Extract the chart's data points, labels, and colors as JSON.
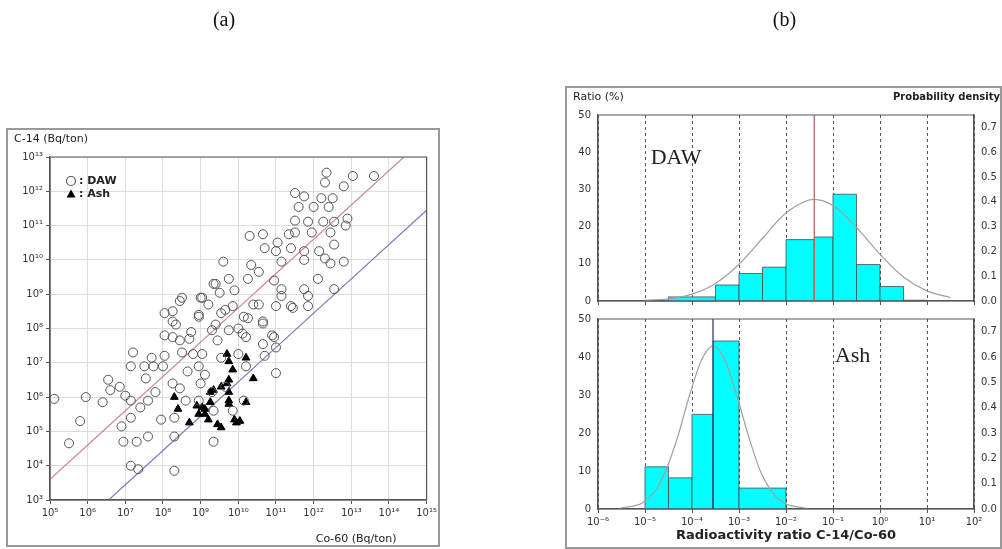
{
  "chart_data": [
    {
      "type": "scatter",
      "title": "(a)",
      "xlabel": "Co-60 (Bq/ton)",
      "ylabel": "C-14 (Bq/ton)",
      "log": "xy",
      "grid": true,
      "legend": "top left",
      "xlim": [
        100000.0,
        1000000000000000.0
      ],
      "ylim": [
        1000.0,
        10000000000000.0
      ],
      "xticks": [
        {
          "value": 100000.0,
          "label": "10⁵"
        },
        {
          "value": 1000000.0,
          "label": "10⁶"
        },
        {
          "value": 10000000.0,
          "label": "10⁷"
        },
        {
          "value": 100000000.0,
          "label": "10⁸"
        },
        {
          "value": 1000000000.0,
          "label": "10⁹"
        },
        {
          "value": 10000000000.0,
          "label": "10¹⁰"
        },
        {
          "value": 100000000000.0,
          "label": "10¹¹"
        },
        {
          "value": 1000000000000.0,
          "label": "10¹²"
        },
        {
          "value": 10000000000000.0,
          "label": "10¹³"
        },
        {
          "value": 100000000000000.0,
          "label": "10¹⁴"
        },
        {
          "value": 1000000000000000.0,
          "label": "10¹⁵"
        }
      ],
      "yticks": [
        {
          "value": 1000.0,
          "label": "10³"
        },
        {
          "value": 10000.0,
          "label": "10⁴"
        },
        {
          "value": 100000.0,
          "label": "10⁵"
        },
        {
          "value": 1000000.0,
          "label": "10⁶"
        },
        {
          "value": 10000000.0,
          "label": "10⁷"
        },
        {
          "value": 100000000.0,
          "label": "10⁸"
        },
        {
          "value": 1000000000.0,
          "label": "10⁹"
        },
        {
          "value": 10000000000.0,
          "label": "10¹⁰"
        },
        {
          "value": 100000000000.0,
          "label": "10¹¹"
        },
        {
          "value": 1000000000000.0,
          "label": "10¹²"
        },
        {
          "value": 10000000000000.0,
          "label": "10¹³"
        }
      ],
      "series": [
        {
          "name": ": DAW",
          "type": "scatter",
          "marker": "circle",
          "color": "#555555",
          "x": [
            130000.0,
            890000.0,
            630000.0,
            320000.0,
            2500000.0,
            3500000.0,
            4000000.0,
            7100000.0,
            7900000.0,
            8900000.0,
            14000000.0,
            14000000.0,
            20000000.0,
            22000000.0,
            40000000.0,
            200000000.0,
            200000000.0,
            89000000.0,
            200000000.0,
            16000000.0,
            14000000.0,
            32000000.0,
            50000000.0,
            56000000.0,
            35000000.0,
            10000000.0,
            14000000.0,
            25000000.0,
            40000000.0,
            63000000.0,
            100000000.0,
            110000000.0,
            110000000.0,
            180000000.0,
            110000000.0,
            180000000.0,
            220000000.0,
            280000000.0,
            320000000.0,
            560000000.0,
            890000000.0,
            1100000000.0,
            1600000000.0,
            2000000000.0,
            2800000000.0,
            3500000000.0,
            5600000000.0,
            7100000000.0,
            10000000000.0,
            16000000000.0,
            14000000000.0,
            25000000000.0,
            45000000000.0,
            45000000000.0,
            50000000000.0,
            89000000000.0,
            100000000000.0,
            100000000000.0,
            100000000000.0,
            280000000000.0,
            710000000000.0,
            1300000000.0,
            450000000.0,
            280000000.0,
            180000000.0,
            400000000.0,
            1000000000.0,
            890000000.0,
            2200000000.0,
            2000000000.0,
            4500000000.0,
            7100000000.0,
            14000000000.0,
            16000000000.0,
            10000000000.0,
            2200000000.0,
            630000000.0,
            3500000000.0,
            890000000.0,
            2200000000000.0,
            2000000000000.0,
            6300000000000.0,
            11000000000000.0,
            40000000000000.0,
            320000000000.0,
            560000000000.0,
            1600000000000.0,
            3200000000000.0,
            400000000000.0,
            1000000000000.0,
            2500000000000.0,
            7900000000000.0,
            7100000000000.0,
            320000000000.0,
            710000000000.0,
            1800000000000.0,
            3500000000000.0,
            320000000000.0,
            890000000000.0,
            2800000000000.0,
            3500000000000.0,
            220000000000.0,
            20000000000.0,
            45000000000.0,
            110000000000.0,
            250000000000.0,
            50000000000.0,
            100000000000.0,
            560000000000.0,
            560000000000.0,
            1400000000000.0,
            2000000000000.0,
            2800000000000.0,
            6300000000000.0,
            4000000000.0,
            22000000000.0,
            140000000000.0,
            35000000000.0,
            5600000000.0,
            18000000000.0,
            89000000000.0,
            1300000000000.0,
            560000000000.0,
            2500000000.0,
            7900000000.0,
            140000000000.0,
            710000000000.0,
            3500000000000.0,
            1000000000.0,
            3200000000.0,
            320000000.0,
            890000000.0,
            4500000000.0,
            35000000000.0,
            250000000000.0,
            140000000000.0,
            18000000000.0,
            45000000000.0,
            2500000000.0,
            13000000000.0,
            79000000000.0,
            500000000.0,
            2200000000.0,
            280000000.0,
            180000000.0,
            1100000000.0
          ],
          "values": [
            890000.0,
            1000000.0,
            200000.0,
            45000.0,
            710000.0,
            3200000.0,
            1600000.0,
            2000000.0,
            140000.0,
            50000.0,
            250000.0,
            10000.0,
            50000.0,
            7900.0,
            71000.0,
            7100.0,
            71000.0,
            220000.0,
            250000.0,
            20000000.0,
            7900000.0,
            7900000.0,
            14000000.0,
            7900000.0,
            3500000.0,
            1100000.0,
            790000.0,
            500000.0,
            790000.0,
            1400000.0,
            7900000.0,
            16000000.0,
            63000000.0,
            56000000.0,
            280000000.0,
            320000000.0,
            130000000.0,
            45000000.0,
            20000000.0,
            79000000.0,
            220000000.0,
            18000000.0,
            500000000.0,
            89000000.0,
            45000000.0,
            280000000.0,
            89000000.0,
            450000000.0,
            100000000.0,
            56000000.0,
            220000000.0,
            500000000.0,
            140000000.0,
            35000000.0,
            16000000.0,
            56000000.0,
            450000000.0,
            28000000.0,
            5000000.0,
            400000000.0,
            450000000.0,
            4500000.0,
            5600000.0,
            1800000.0,
            2500000.0,
            790000.0,
            2500000.0,
            790000.0,
            400000.0,
            1400000.0,
            2000000.0,
            400000.0,
            790000.0,
            7900000.0,
            18000000.0,
            50000.0,
            18000000.0,
            14000000.0,
            7900000.0,
            3500000000000.0,
            1800000000000.0,
            1400000000000.0,
            2800000000000.0,
            2800000000000.0,
            890000000000.0,
            710000000000.0,
            630000000000.0,
            630000000000.0,
            350000000000.0,
            350000000000.0,
            350000000000.0,
            160000000000.0,
            100000000000.0,
            140000000000.0,
            130000000000.0,
            130000000000.0,
            130000000000.0,
            63000000000.0,
            63000000000.0,
            63000000000.0,
            28000000000.0,
            56000000000.0,
            50000000000.0,
            56000000000.0,
            32000000000.0,
            22000000000.0,
            22000000000.0,
            18000000000.0,
            18000000000.0,
            10000000000.0,
            18000000000.0,
            11000000000.0,
            7900000000.0,
            8900000000.0,
            8900000000.0,
            7100000000.0,
            8900000000.0,
            4500000000.0,
            2800000000.0,
            2800000000.0,
            2500000000.0,
            2800000000.0,
            1400000000.0,
            2000000000.0,
            1300000000.0,
            1400000000.0,
            890000000.0,
            1400000000.0,
            790000000.0,
            1100000000.0,
            790000000.0,
            250000000.0,
            350000000.0,
            500000000.0,
            450000000.0,
            890000000.0,
            200000000.0,
            160000000.0,
            130000000.0,
            71000000.0,
            63000000.0,
            50000000.0,
            2000000000.0,
            630000000.0,
            160000000.0,
            790000000.0
          ]
        },
        {
          "name": ": Ash",
          "type": "scatter",
          "marker": "triangle",
          "color": "#000000",
          "x": [
            5000000000.0,
            5600000000.0,
            16000000000.0,
            7100000000.0,
            25000000000.0,
            5600000000.0,
            5000000000.0,
            2200000000.0,
            1800000000.0,
            3500000000.0,
            5600000000.0,
            1800000000.0,
            5600000000.0,
            5600000000.0,
            16000000000.0,
            200000000.0,
            250000000.0,
            790000000.0,
            890000000.0,
            1300000000.0,
            1300000000.0,
            1600000000.0,
            500000000.0,
            2800000000.0,
            3500000000.0,
            7900000000.0,
            11000000000.0,
            8900000000.0,
            1100000000.0
          ],
          "values": [
            18000000.0,
            11000000.0,
            14000000.0,
            6300000.0,
            3500000.0,
            3200000.0,
            2500000.0,
            1600000.0,
            1400000.0,
            2000000.0,
            1400000.0,
            710000.0,
            790000.0,
            630000.0,
            710000.0,
            1000000.0,
            450000.0,
            560000.0,
            320000.0,
            450000.0,
            320000.0,
            220000.0,
            180000.0,
            160000.0,
            130000.0,
            220000.0,
            200000.0,
            180000.0,
            500000.0
          ]
        },
        {
          "type": "line",
          "marker": "none",
          "color": "#c98a8f",
          "x": [
            100000.0,
            250000000000000.0
          ],
          "values": [
            4000.0,
            10000000000000.0
          ]
        },
        {
          "type": "line",
          "marker": "none",
          "color": "#7d7db5",
          "x": [
            3600000.0,
            1000000000000000.0
          ],
          "values": [
            1000.0,
            280000000000.0
          ]
        }
      ]
    },
    {
      "type": "histogram",
      "title": "(b)",
      "ylabel": "Ratio (%)",
      "y2label": "Probability density",
      "annotations": [
        "DAW"
      ],
      "log": "x",
      "grid": "x",
      "tick_labels": "y",
      "color": "#00ffff",
      "bins": [
        1e-05,
        3.16e-05,
        0.000316,
        0.001,
        0.00316,
        0.01,
        0.04,
        0.1,
        0.316,
        1,
        3.16,
        10
      ],
      "values": [
        0.2,
        1.1,
        4.3,
        7.4,
        9.1,
        16.5,
        17.2,
        28.7,
        9.8,
        3.9,
        0.2
      ],
      "xlim": [
        1e-06,
        100
      ],
      "xticks": [
        {
          "value": 1e-06,
          "label": null
        },
        {
          "value": 1e-05,
          "label": null
        },
        {
          "value": 0.0001,
          "label": null
        },
        {
          "value": 0.001,
          "label": null
        },
        {
          "value": 0.01,
          "label": null
        },
        {
          "value": 0.1,
          "label": null
        },
        {
          "value": 1,
          "label": null
        },
        {
          "value": 10,
          "label": null
        },
        {
          "value": 100,
          "label": null
        }
      ],
      "ylim": [
        0,
        50
      ],
      "yticks": [
        0,
        10,
        20,
        30,
        40,
        50
      ],
      "y2lim": [
        0,
        0.75
      ],
      "y2ticks": [
        {
          "value": 0,
          "label": "0.0"
        },
        0.1,
        0.2,
        0.3,
        0.4,
        0.5,
        0.6,
        0.7
      ],
      "ref_lines": [
        {
          "axis": "x",
          "value": 0.04,
          "color": "#b56a5e"
        }
      ],
      "series": [
        {
          "type": "line",
          "axis": "y2",
          "color": "#a0a0a0",
          "x": [
            1e-05,
            3.16e-05,
            0.0001,
            0.000316,
            0.001,
            0.00316,
            0.01,
            0.04,
            0.1,
            0.316,
            1,
            3.16,
            10,
            31.6
          ],
          "values": [
            0.002,
            0.009,
            0.028,
            0.071,
            0.148,
            0.253,
            0.355,
            0.41,
            0.385,
            0.297,
            0.188,
            0.097,
            0.041,
            0.014
          ]
        }
      ]
    },
    {
      "type": "histogram",
      "xlabel": "Radioactivity ratio C-14/Co-60",
      "annotations": [
        "Ash"
      ],
      "log": "x",
      "grid": "x",
      "color": "#00ffff",
      "bins": [
        1e-05,
        3.16e-05,
        0.0001,
        0.00028,
        0.001,
        0.01
      ],
      "values": [
        11.1,
        8.2,
        24.9,
        44.2,
        5.5
      ],
      "xlim": [
        1e-06,
        100
      ],
      "xticks": [
        {
          "value": 1e-06,
          "label": "10⁻⁶"
        },
        {
          "value": 1e-05,
          "label": "10⁻⁵"
        },
        {
          "value": 0.0001,
          "label": "10⁻⁴"
        },
        {
          "value": 0.001,
          "label": "10⁻³"
        },
        {
          "value": 0.01,
          "label": "10⁻²"
        },
        {
          "value": 0.1,
          "label": "10⁻¹"
        },
        {
          "value": 1,
          "label": "10⁰"
        },
        {
          "value": 10,
          "label": "10¹"
        },
        {
          "value": 100,
          "label": "10²"
        }
      ],
      "ylim": [
        0,
        50
      ],
      "yticks": [
        0,
        10,
        20,
        30,
        40,
        50
      ],
      "y2lim": [
        0,
        0.75
      ],
      "y2ticks": [
        {
          "value": 0,
          "label": "0.0"
        },
        0.1,
        0.2,
        0.3,
        0.4,
        0.5,
        0.6,
        0.7
      ],
      "ref_lines": [
        {
          "axis": "x",
          "value": 0.00028,
          "color": "#3a3a7a"
        }
      ],
      "series": [
        {
          "type": "line",
          "axis": "y2",
          "color": "#a0a0a0",
          "x": [
            2.8e-06,
            8.9e-06,
            1.6e-05,
            2.8e-05,
            5e-05,
            8.9e-05,
            0.00016,
            0.00028,
            0.0005,
            0.00089,
            0.0016,
            0.0028,
            0.005,
            0.0089,
            0.028
          ],
          "values": [
            0.002,
            0.025,
            0.068,
            0.153,
            0.287,
            0.45,
            0.589,
            0.644,
            0.589,
            0.45,
            0.287,
            0.153,
            0.068,
            0.025,
            0.002
          ]
        }
      ]
    }
  ]
}
